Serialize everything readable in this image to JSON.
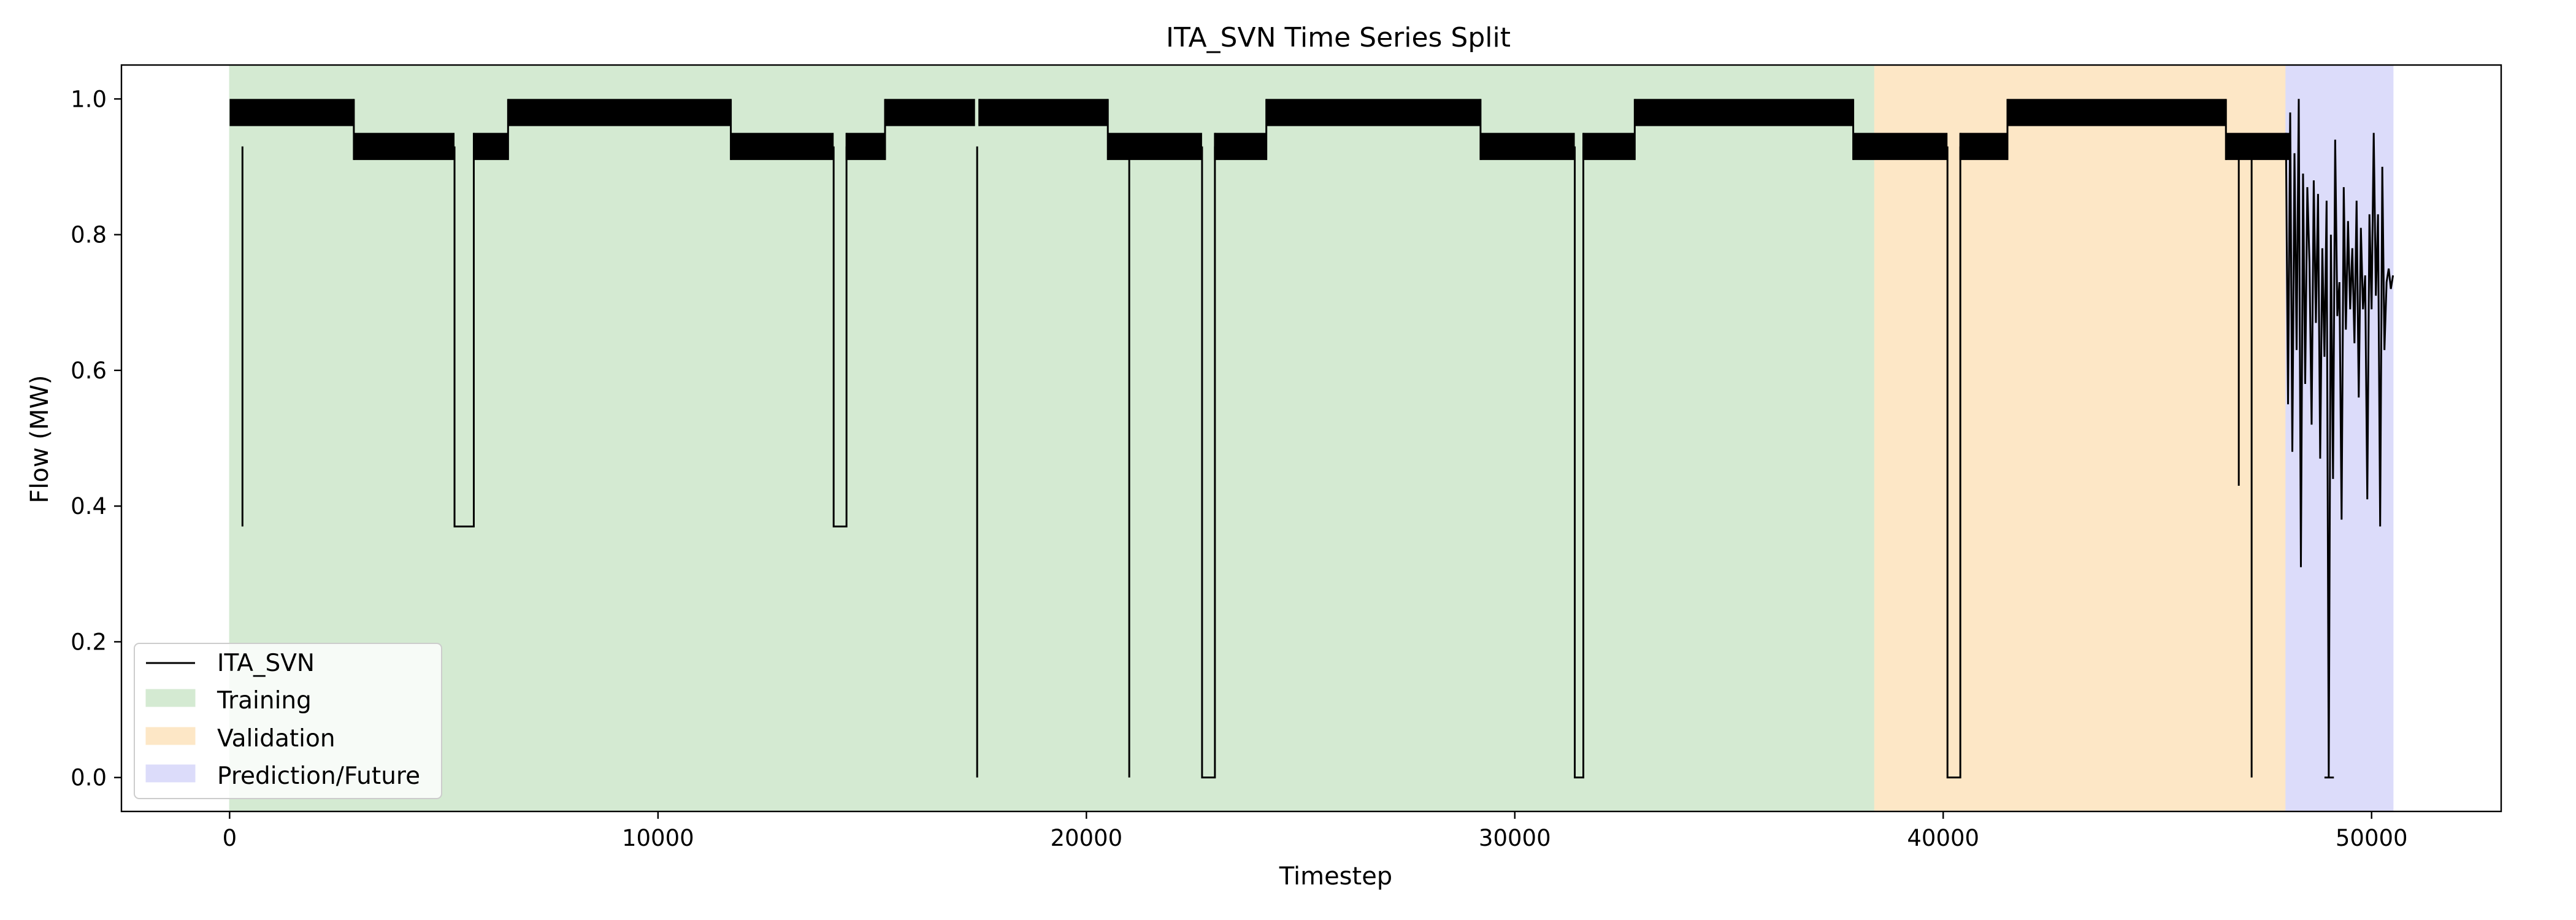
{
  "chart_data": {
    "type": "line",
    "title": "ITA_SVN Time Series Split",
    "xlabel": "Timestep",
    "ylabel": "Flow (MW)",
    "xlim": [
      -2525,
      53025
    ],
    "ylim": [
      -0.05,
      1.05
    ],
    "xticks": [
      0,
      10000,
      20000,
      30000,
      40000,
      50000
    ],
    "xtick_labels": [
      "0",
      "10000",
      "20000",
      "30000",
      "40000",
      "50000"
    ],
    "yticks": [
      0.0,
      0.2,
      0.4,
      0.6,
      0.8,
      1.0
    ],
    "ytick_labels": [
      "0.0",
      "0.2",
      "0.4",
      "0.6",
      "0.8",
      "1.0"
    ],
    "grid": false,
    "legend_position": "lower-left",
    "legend": [
      "ITA_SVN",
      "Training",
      "Validation",
      "Prediction/Future"
    ],
    "regions": [
      {
        "name": "Training",
        "start": 0,
        "end": 38400,
        "color": "#d4ead2"
      },
      {
        "name": "Validation",
        "start": 38400,
        "end": 48000,
        "color": "#fde7c6"
      },
      {
        "name": "Prediction/Future",
        "start": 48000,
        "end": 50500,
        "color": "#dcdcfa"
      }
    ],
    "series": [
      {
        "name": "ITA_SVN",
        "color": "#000000",
        "segments": [
          {
            "start": 0,
            "end": 2900,
            "low": 0.96,
            "high": 1.0
          },
          {
            "start": 2900,
            "end": 5250,
            "low": 0.91,
            "high": 0.95
          },
          {
            "start": 5700,
            "end": 6500,
            "low": 0.91,
            "high": 0.95
          },
          {
            "start": 6500,
            "end": 11700,
            "low": 0.96,
            "high": 1.0
          },
          {
            "start": 11700,
            "end": 14100,
            "low": 0.91,
            "high": 0.95
          },
          {
            "start": 14400,
            "end": 15300,
            "low": 0.91,
            "high": 0.95
          },
          {
            "start": 15300,
            "end": 17400,
            "low": 0.96,
            "high": 1.0
          },
          {
            "start": 17500,
            "end": 20500,
            "low": 0.96,
            "high": 1.0
          },
          {
            "start": 20500,
            "end": 22700,
            "low": 0.91,
            "high": 0.95
          },
          {
            "start": 23000,
            "end": 24200,
            "low": 0.91,
            "high": 0.95
          },
          {
            "start": 24200,
            "end": 29200,
            "low": 0.96,
            "high": 1.0
          },
          {
            "start": 29200,
            "end": 31400,
            "low": 0.91,
            "high": 0.95
          },
          {
            "start": 31600,
            "end": 32800,
            "low": 0.91,
            "high": 0.95
          },
          {
            "start": 32800,
            "end": 37900,
            "low": 0.96,
            "high": 1.0
          },
          {
            "start": 37900,
            "end": 40100,
            "low": 0.91,
            "high": 0.95
          },
          {
            "start": 40400,
            "end": 41500,
            "low": 0.91,
            "high": 0.95
          },
          {
            "start": 41500,
            "end": 46600,
            "low": 0.96,
            "high": 1.0
          },
          {
            "start": 46600,
            "end": 48100,
            "low": 0.91,
            "high": 0.95
          }
        ],
        "drops": [
          {
            "x": 300,
            "y": 0.37
          },
          {
            "x": 5250,
            "x2": 5700,
            "y": 0.37
          },
          {
            "x": 14100,
            "x2": 14400,
            "y": 0.37
          },
          {
            "x": 17450,
            "y": 0.0
          },
          {
            "x": 21000,
            "y": 0.0
          },
          {
            "x": 22700,
            "x2": 23000,
            "y": 0.0
          },
          {
            "x": 31400,
            "x2": 31600,
            "y": 0.0
          },
          {
            "x": 40100,
            "x2": 40400,
            "y": 0.0
          },
          {
            "x": 46900,
            "y": 0.43
          },
          {
            "x": 47200,
            "y": 0.0
          }
        ],
        "volatile": {
          "points": [
            [
              48000,
              0.95
            ],
            [
              48050,
              0.55
            ],
            [
              48100,
              0.98
            ],
            [
              48150,
              0.48
            ],
            [
              48200,
              0.92
            ],
            [
              48250,
              0.63
            ],
            [
              48300,
              1.0
            ],
            [
              48350,
              0.31
            ],
            [
              48400,
              0.89
            ],
            [
              48450,
              0.58
            ],
            [
              48500,
              0.87
            ],
            [
              48550,
              0.76
            ],
            [
              48600,
              0.52
            ],
            [
              48650,
              0.88
            ],
            [
              48700,
              0.67
            ],
            [
              48750,
              0.86
            ],
            [
              48800,
              0.47
            ],
            [
              48850,
              0.78
            ],
            [
              48900,
              0.62
            ],
            [
              48950,
              0.85
            ],
            [
              49000,
              0.0
            ],
            [
              49050,
              0.8
            ],
            [
              49100,
              0.44
            ],
            [
              49150,
              0.94
            ],
            [
              49200,
              0.68
            ],
            [
              49250,
              0.73
            ],
            [
              49300,
              0.38
            ],
            [
              49350,
              0.87
            ],
            [
              49400,
              0.66
            ],
            [
              49450,
              0.82
            ],
            [
              49500,
              0.69
            ],
            [
              49550,
              0.78
            ],
            [
              49600,
              0.64
            ],
            [
              49650,
              0.85
            ],
            [
              49700,
              0.56
            ],
            [
              49750,
              0.81
            ],
            [
              49800,
              0.69
            ],
            [
              49850,
              0.74
            ],
            [
              49900,
              0.41
            ],
            [
              49950,
              0.83
            ],
            [
              50000,
              0.69
            ],
            [
              50050,
              0.95
            ],
            [
              50100,
              0.71
            ],
            [
              50150,
              0.83
            ],
            [
              50200,
              0.37
            ],
            [
              50250,
              0.9
            ],
            [
              50300,
              0.63
            ],
            [
              50350,
              0.73
            ],
            [
              50400,
              0.75
            ],
            [
              50450,
              0.72
            ],
            [
              50500,
              0.74
            ]
          ],
          "flat_low": {
            "start": 48900,
            "end": 49120,
            "y": 0.0
          }
        }
      }
    ]
  }
}
